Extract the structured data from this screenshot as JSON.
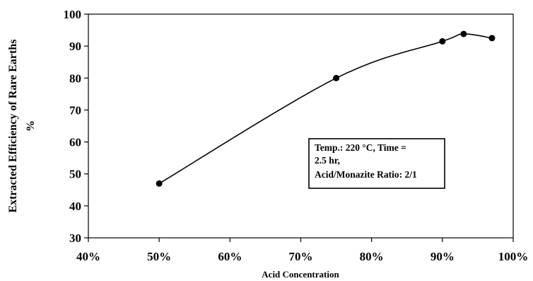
{
  "chart_data": {
    "type": "line",
    "xlabel": "Acid Concentration",
    "ylabel_line1": "Extracted Efficiency of Rare Earths",
    "ylabel_line2": "%",
    "xlim": [
      40,
      100
    ],
    "ylim": [
      30,
      100
    ],
    "x_ticks": [
      "40%",
      "50%",
      "60%",
      "70%",
      "80%",
      "90%",
      "100%"
    ],
    "y_ticks": [
      "30",
      "40",
      "50",
      "60",
      "70",
      "80",
      "90",
      "100"
    ],
    "grid": false,
    "series": [
      {
        "x": [
          50,
          75,
          90,
          93,
          97
        ],
        "y": [
          47,
          80,
          91.5,
          93.8,
          92.5
        ]
      }
    ],
    "annotation": {
      "line1": "Temp.: 220 °C, Time =",
      "line2": "2.5 hr,",
      "line3": "Acid/Monazite Ratio: 2/1"
    }
  }
}
